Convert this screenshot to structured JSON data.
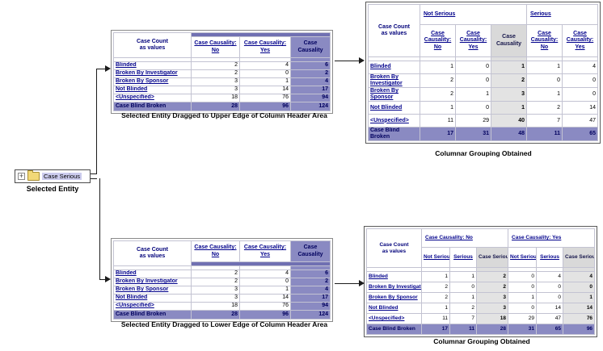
{
  "selected_entity": {
    "label": "Case Serious",
    "caption": "Selected Entity"
  },
  "icons": {
    "expander_plus": "+"
  },
  "colors": {
    "accent_navy": "#00008b",
    "periwinkle_total": "#8a8ac2",
    "drop_strip_blue": "#7070b2",
    "summary_gray": "#d9d9d9",
    "tree_highlight": "#ccccee"
  },
  "upper_table": {
    "caption": "Selected Entity Dragged to Upper Edge of Column Header Area",
    "corner_line1": "Case Count",
    "corner_line2": "as values",
    "drop_indicator": "above-headers",
    "columns": [
      {
        "label": "Case Causality: No",
        "style": "link"
      },
      {
        "label": "Case Causality: Yes",
        "style": "link"
      },
      {
        "label": "Case Causality",
        "style": "accent"
      }
    ],
    "rows": [
      {
        "label": "Blinded",
        "values": [
          "2",
          "4",
          "6"
        ]
      },
      {
        "label": "Broken By Investigator",
        "values": [
          "2",
          "0",
          "2"
        ]
      },
      {
        "label": "Broken By Sponsor",
        "values": [
          "3",
          "1",
          "4"
        ]
      },
      {
        "label": "Not Blinded",
        "values": [
          "3",
          "14",
          "17"
        ]
      },
      {
        "label": "<Unspecified>",
        "values": [
          "18",
          "76",
          "94"
        ]
      }
    ],
    "total": {
      "label": "Case Blind Broken",
      "values": [
        "28",
        "96",
        "124"
      ]
    }
  },
  "upper_result": {
    "caption": "Columnar Grouping Obtained",
    "corner_line1": "Case Count",
    "corner_line2": "as values",
    "groups": [
      {
        "label": "Not Serious",
        "span": 3
      },
      {
        "label": "Serious",
        "span": 2
      }
    ],
    "columns": [
      {
        "label": "Case Causality: No",
        "style": "link"
      },
      {
        "label": "Case Causality: Yes",
        "style": "link"
      },
      {
        "label": "Case Causality",
        "style": "gray"
      },
      {
        "label": "Case Causality: No",
        "style": "link"
      },
      {
        "label": "Case Causality: Yes",
        "style": "link"
      }
    ],
    "rows": [
      {
        "label": "Blinded",
        "values": [
          "1",
          "0",
          "1",
          "1",
          "4"
        ]
      },
      {
        "label": "Broken By Investigator",
        "values": [
          "2",
          "0",
          "2",
          "0",
          "0"
        ]
      },
      {
        "label": "Broken By Sponsor",
        "values": [
          "2",
          "1",
          "3",
          "1",
          "0"
        ]
      },
      {
        "label": "Not Blinded",
        "values": [
          "1",
          "0",
          "1",
          "2",
          "14"
        ]
      },
      {
        "label": "<Unspecified>",
        "values": [
          "11",
          "29",
          "40",
          "7",
          "47"
        ]
      }
    ],
    "total": {
      "label": "Case Blind Broken",
      "values": [
        "17",
        "31",
        "48",
        "11",
        "65"
      ]
    }
  },
  "lower_table": {
    "caption": "Selected Entity Dragged to Lower Edge of Column Header Area",
    "corner_line1": "Case Count",
    "corner_line2": "as values",
    "drop_indicator": "below-headers",
    "columns": [
      {
        "label": "Case Causality: No",
        "style": "link"
      },
      {
        "label": "Case Causality: Yes",
        "style": "link"
      },
      {
        "label": "Case Causality",
        "style": "accent"
      }
    ],
    "rows": [
      {
        "label": "Blinded",
        "values": [
          "2",
          "4",
          "6"
        ]
      },
      {
        "label": "Broken By Investigator",
        "values": [
          "2",
          "0",
          "2"
        ]
      },
      {
        "label": "Broken By Sponsor",
        "values": [
          "3",
          "1",
          "4"
        ]
      },
      {
        "label": "Not Blinded",
        "values": [
          "3",
          "14",
          "17"
        ]
      },
      {
        "label": "<Unspecified>",
        "values": [
          "18",
          "76",
          "94"
        ]
      }
    ],
    "total": {
      "label": "Case Blind Broken",
      "values": [
        "28",
        "96",
        "124"
      ]
    }
  },
  "lower_result": {
    "caption": "Columnar Grouping Obtained",
    "corner_line1": "Case Count",
    "corner_line2": "as values",
    "groups": [
      {
        "label": "Case Causality: No",
        "span": 3
      },
      {
        "label": "Case Causality: Yes",
        "span": 3
      }
    ],
    "columns": [
      {
        "label": "Not Serious",
        "style": "link"
      },
      {
        "label": "Serious",
        "style": "link"
      },
      {
        "label": "Case Serious",
        "style": "gray"
      },
      {
        "label": "Not Serious",
        "style": "link"
      },
      {
        "label": "Serious",
        "style": "link"
      },
      {
        "label": "Case Serious",
        "style": "gray"
      }
    ],
    "rows": [
      {
        "label": "Blinded",
        "values": [
          "1",
          "1",
          "2",
          "0",
          "4",
          "4"
        ]
      },
      {
        "label": "Broken By Investigator",
        "values": [
          "2",
          "0",
          "2",
          "0",
          "0",
          "0"
        ]
      },
      {
        "label": "Broken By Sponsor",
        "values": [
          "2",
          "1",
          "3",
          "1",
          "0",
          "1"
        ]
      },
      {
        "label": "Not Blinded",
        "values": [
          "1",
          "2",
          "3",
          "0",
          "14",
          "14"
        ]
      },
      {
        "label": "<Unspecified>",
        "values": [
          "11",
          "7",
          "18",
          "29",
          "47",
          "76"
        ]
      }
    ],
    "total": {
      "label": "Case Blind Broken",
      "values": [
        "17",
        "11",
        "28",
        "31",
        "65",
        "96"
      ]
    }
  }
}
